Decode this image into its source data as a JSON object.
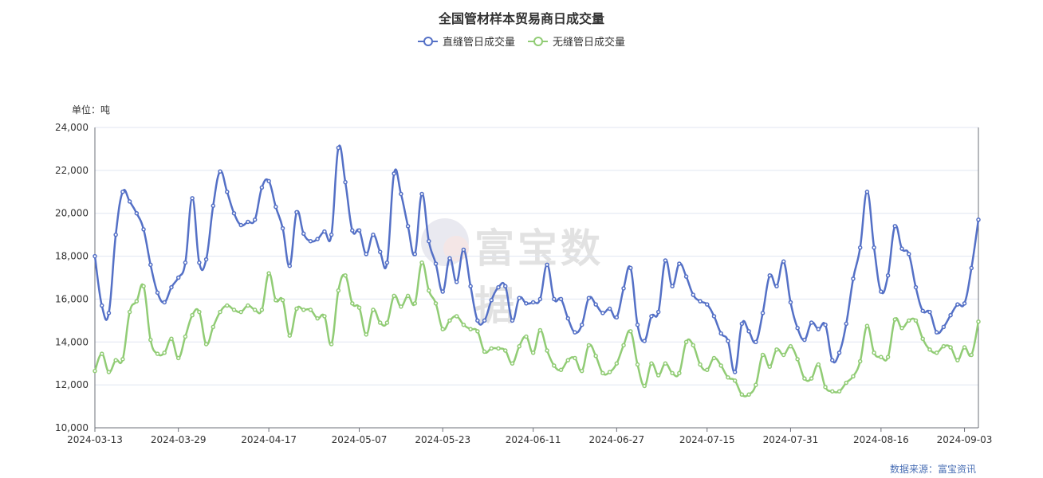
{
  "chart_data": {
    "type": "line",
    "title": "全国管材样本贸易商日成交量",
    "unit_label": "单位：吨",
    "source": "数据来源：富宝资讯",
    "watermark": "富宝数据",
    "ylim": [
      10000,
      24000
    ],
    "y_ticks": [
      10000,
      12000,
      14000,
      16000,
      18000,
      20000,
      22000,
      24000
    ],
    "y_tick_labels": [
      "10,000",
      "12,000",
      "14,000",
      "16,000",
      "18,000",
      "20,000",
      "22,000",
      "24,000"
    ],
    "x_tick_labels": [
      "2024-03-13",
      "2024-03-29",
      "2024-04-17",
      "2024-05-07",
      "2024-05-23",
      "2024-06-11",
      "2024-06-27",
      "2024-07-15",
      "2024-07-31",
      "2024-08-16",
      "2024-09-03"
    ],
    "x_tick_indices": [
      0,
      12,
      25,
      38,
      50,
      63,
      75,
      88,
      100,
      113,
      125
    ],
    "grid": true,
    "legend_position": "top-center",
    "series": [
      {
        "name": "直缝管日成交量",
        "color": "#5470c6",
        "values": [
          18000,
          15700,
          15350,
          19000,
          21000,
          20550,
          20000,
          19250,
          17600,
          16300,
          15850,
          16550,
          17000,
          17700,
          20700,
          17700,
          17850,
          20350,
          21950,
          21000,
          20000,
          19450,
          19600,
          19700,
          21200,
          21500,
          20300,
          19300,
          17550,
          20050,
          19050,
          18700,
          18800,
          19150,
          19000,
          23050,
          21450,
          19200,
          19200,
          18100,
          19000,
          18200,
          17700,
          21850,
          20900,
          19400,
          18100,
          20900,
          18700,
          17650,
          16350,
          17900,
          16800,
          18300,
          16600,
          15000,
          15000,
          15950,
          16550,
          16600,
          15000,
          16050,
          15800,
          15850,
          16000,
          17600,
          16000,
          16000,
          15100,
          14450,
          14800,
          16050,
          15750,
          15350,
          15550,
          15150,
          16500,
          17450,
          14800,
          14050,
          15200,
          15400,
          17800,
          16600,
          17650,
          17050,
          16200,
          15900,
          15750,
          15200,
          14400,
          14050,
          12600,
          14850,
          14500,
          14000,
          15350,
          17100,
          16600,
          17750,
          15850,
          14650,
          14100,
          14900,
          14600,
          14800,
          13150,
          13500,
          14850,
          16950,
          18400,
          21000,
          18400,
          16350,
          17100,
          19400,
          18350,
          18100,
          16550,
          15450,
          15400,
          14450,
          14700,
          15250,
          15750,
          15800,
          17450,
          19700
        ]
      },
      {
        "name": "无缝管日成交量",
        "color": "#91cc75",
        "values": [
          12650,
          13450,
          12600,
          13150,
          13200,
          15400,
          15900,
          16600,
          14100,
          13450,
          13500,
          14150,
          13250,
          14250,
          15250,
          15400,
          13900,
          14700,
          15400,
          15700,
          15500,
          15400,
          15700,
          15500,
          15500,
          17200,
          15950,
          15950,
          14300,
          15550,
          15500,
          15500,
          15100,
          15200,
          13900,
          16400,
          17100,
          15800,
          15600,
          14350,
          15500,
          14900,
          14900,
          16150,
          15650,
          16150,
          15800,
          17700,
          16400,
          15800,
          14600,
          15000,
          15200,
          14800,
          14600,
          14500,
          13550,
          13700,
          13700,
          13600,
          13000,
          13800,
          14250,
          13500,
          14550,
          13600,
          12900,
          12700,
          13150,
          13250,
          12650,
          13850,
          13350,
          12550,
          12600,
          13000,
          13850,
          14500,
          12950,
          11950,
          13000,
          12450,
          13000,
          12550,
          12550,
          14000,
          13850,
          12950,
          12700,
          13250,
          12900,
          12350,
          12200,
          11550,
          11550,
          12000,
          13400,
          12850,
          13650,
          13400,
          13800,
          13200,
          12300,
          12300,
          12950,
          11900,
          11700,
          11700,
          12100,
          12400,
          13100,
          14750,
          13500,
          13300,
          13300,
          15050,
          14650,
          15000,
          15000,
          14150,
          13650,
          13500,
          13800,
          13750,
          13150,
          13750,
          13400,
          14950
        ]
      }
    ]
  }
}
